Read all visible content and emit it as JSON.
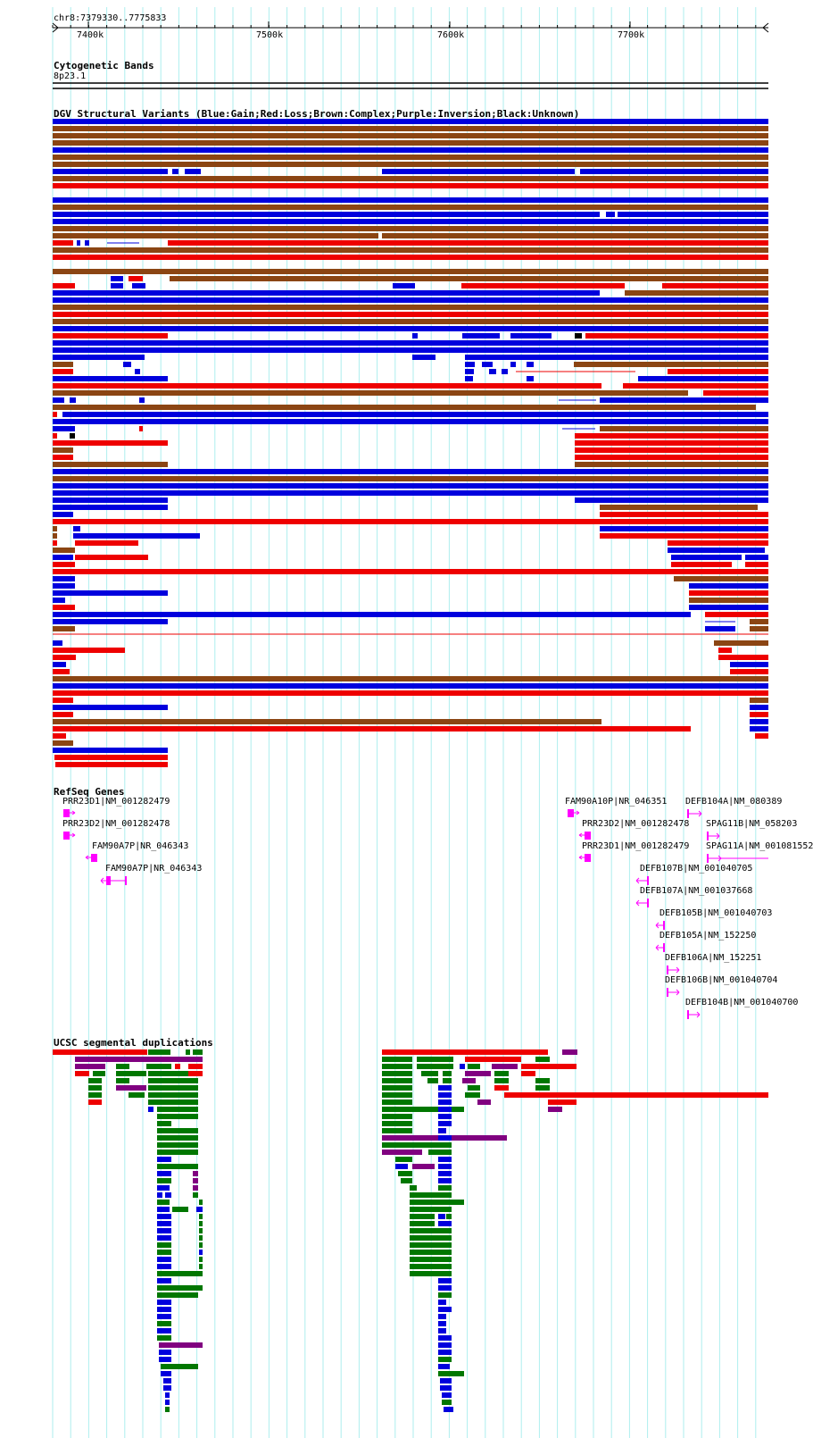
{
  "ruler": {
    "range_label": "chr8:7379330..7775833",
    "ticks": [
      {
        "label": "7400k",
        "value": 7400
      },
      {
        "label": "7500k",
        "value": 7500
      },
      {
        "label": "7600k",
        "value": 7600
      },
      {
        "label": "7700k",
        "value": 7700
      }
    ]
  },
  "tracks": {
    "cyto_title": "Cytogenetic Bands",
    "cyto_band": "8p23.1",
    "dgv_title": "DGV Structural Variants (Blue:Gain;Red:Loss;Brown:Complex;Purple:Inversion;Black:Unknown)",
    "refseq_title": "RefSeq Genes",
    "segdup_title": "UCSC segmental duplications"
  },
  "colors": {
    "gain": "#0000dd",
    "loss": "#ee0000",
    "complex": "#8b4513",
    "inversion": "#800080",
    "unknown": "#000000",
    "gene": "#ff00ff",
    "segdup_green": "#007700",
    "grid": "#aeeeee"
  },
  "genes": [
    {
      "label": "PRR23D1|NM_001282479",
      "icon": "gene-forward-icon"
    },
    {
      "label": "PRR23D2|NM_001282478",
      "icon": "gene-forward-icon"
    },
    {
      "label": "FAM90A7P|NR_046343",
      "icon": "gene-reverse-icon"
    },
    {
      "label": "FAM90A7P|NR_046343",
      "icon": "gene-reverse-icon"
    },
    {
      "label": "FAM90A10P|NR_046351",
      "icon": "gene-forward-icon"
    },
    {
      "label": "PRR23D2|NM_001282478",
      "icon": "gene-reverse-icon"
    },
    {
      "label": "PRR23D1|NM_001282479",
      "icon": "gene-reverse-icon"
    },
    {
      "label": "DEFB104A|NM_080389",
      "icon": "gene-forward-icon"
    },
    {
      "label": "SPAG11B|NM_058203",
      "icon": "gene-forward-icon"
    },
    {
      "label": "SPAG11A|NM_001081552",
      "icon": "gene-forward-icon"
    },
    {
      "label": "DEFB107B|NM_001040705",
      "icon": "gene-reverse-icon"
    },
    {
      "label": "DEFB107A|NM_001037668",
      "icon": "gene-reverse-icon"
    },
    {
      "label": "DEFB105B|NM_001040703",
      "icon": "gene-reverse-icon"
    },
    {
      "label": "DEFB105A|NM_152250",
      "icon": "gene-reverse-icon"
    },
    {
      "label": "DEFB106A|NM_152251",
      "icon": "gene-forward-icon"
    },
    {
      "label": "DEFB106B|NM_001040704",
      "icon": "gene-forward-icon"
    },
    {
      "label": "DEFB104B|NM_001040700",
      "icon": "gene-forward-icon"
    }
  ]
}
